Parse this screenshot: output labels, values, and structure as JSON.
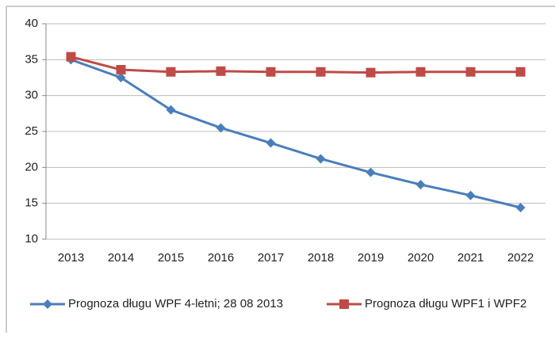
{
  "chart_data": {
    "type": "line",
    "categories": [
      "2013",
      "2014",
      "2015",
      "2016",
      "2017",
      "2018",
      "2019",
      "2020",
      "2021",
      "2022"
    ],
    "series": [
      {
        "name": "Prognoza długu WPF 4-letni; 28 08 2013",
        "color": "#4a7ebb",
        "marker": "diamond",
        "values": [
          35.0,
          32.5,
          28.0,
          25.5,
          23.4,
          21.2,
          19.3,
          17.6,
          16.1,
          14.4
        ]
      },
      {
        "name": "Prognoza długu WPF1 i WPF2",
        "color": "#be4b48",
        "marker": "square",
        "values": [
          35.4,
          33.6,
          33.3,
          33.4,
          33.3,
          33.3,
          33.2,
          33.3,
          33.3,
          33.3
        ]
      }
    ],
    "ylim": [
      10,
      40
    ],
    "yticks": [
      10,
      15,
      20,
      25,
      30,
      35,
      40
    ],
    "grid": true,
    "legend": "bottom"
  }
}
